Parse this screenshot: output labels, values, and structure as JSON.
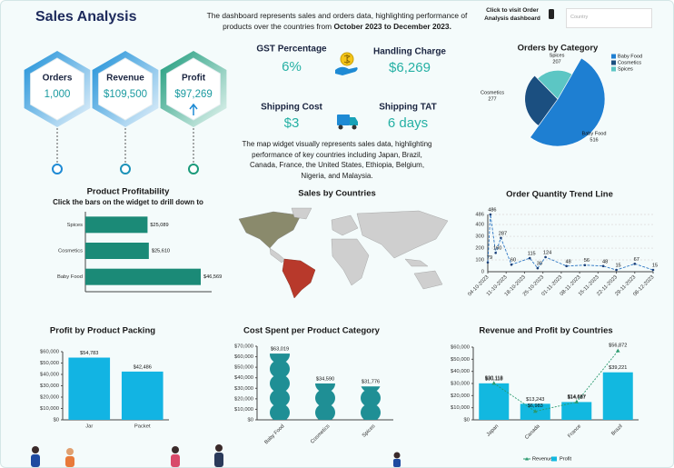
{
  "header": {
    "title": "Sales Analysis",
    "description": "The dashboard represents sales and orders data, highlighting performance of products over the countries from",
    "description_period": "October 2023 to December 2023.",
    "link_text": "Click to visit Order Analysis dashboard",
    "search_placeholder": "Country"
  },
  "metrics": [
    {
      "label": "Orders",
      "value": "1,000"
    },
    {
      "label": "Revenue",
      "value": "$109,500"
    },
    {
      "label": "Profit",
      "value": "$97,269"
    }
  ],
  "kpis": [
    {
      "label": "GST Percentage",
      "value": "6%"
    },
    {
      "label": "Handling Charge",
      "value": "$6,269"
    },
    {
      "label": "Shipping Cost",
      "value": "$3"
    },
    {
      "label": "Shipping TAT",
      "value": "6 days"
    }
  ],
  "map_note": "The map widget visually represents sales data, highlighting performance of key countries including Japan, Brazil, Canada, France, the United States, Ethiopia, Belgium, Nigeria, and Malaysia.",
  "chart_data": [
    {
      "type": "pie",
      "title": "Orders by Category",
      "categories": [
        "Baby Food",
        "Cosmetics",
        "Spices"
      ],
      "values": [
        516,
        277,
        207
      ],
      "colors": [
        "#1e7fd2",
        "#1b4f80",
        "#5cc6c4"
      ],
      "legend": "top-right"
    },
    {
      "type": "bar",
      "orientation": "horizontal",
      "title": "Product Profitability",
      "subtitle": "Click the bars on the widget to drill down to",
      "categories": [
        "Spices",
        "Cosmetics",
        "Baby Food"
      ],
      "values": [
        25089,
        25610,
        46569
      ],
      "value_labels": [
        "$25,089",
        "$25,610",
        "$46,569"
      ],
      "color": "#1b8a77"
    },
    {
      "type": "map",
      "title": "Sales by Countries"
    },
    {
      "type": "line",
      "title": "Order Quantity Trend Line",
      "x": [
        "04-10-2023",
        "05-10-2023",
        "07-10-2023",
        "09-10-2023",
        "13-10-2023",
        "20-10-2023",
        "23-10-2023",
        "26-10-2023",
        "03-11-2023",
        "10-11-2023",
        "17-11-2023",
        "22-11-2023",
        "29-11-2023",
        "06-12-2023"
      ],
      "values": [
        79,
        486,
        160,
        287,
        60,
        115,
        30,
        124,
        48,
        56,
        48,
        15,
        67,
        15
      ],
      "color": "#2f78c4",
      "xlim": [
        "04-10-2023",
        "06-12-2023"
      ],
      "xticks": [
        "04-10-2023",
        "11-10-2023",
        "18-10-2023",
        "25-10-2023",
        "01-11-2023",
        "08-11-2023",
        "15-11-2023",
        "22-11-2023",
        "29-11-2023",
        "06-12-2023"
      ],
      "ylim": [
        0,
        486
      ],
      "yticks": [
        0,
        100,
        200,
        300,
        400,
        486
      ],
      "grid": true
    },
    {
      "type": "bar",
      "title": "Profit by Product Packing",
      "categories": [
        "Jar",
        "Packet"
      ],
      "values": [
        54783,
        42486
      ],
      "value_labels": [
        "$54,783",
        "$42,486"
      ],
      "color": "#12b4e3",
      "ylim": [
        0,
        60000
      ],
      "yticks": [
        {
          "value": 0,
          "label": "$0"
        },
        {
          "value": 10000,
          "label": "$10,000"
        },
        {
          "value": 20000,
          "label": "$20,000"
        },
        {
          "value": 30000,
          "label": "$30,000"
        },
        {
          "value": 40000,
          "label": "$40,000"
        },
        {
          "value": 50000,
          "label": "$50,000"
        },
        {
          "value": 60000,
          "label": "$60,000"
        }
      ]
    },
    {
      "type": "pictograph",
      "title": "Cost Spent per Product Category",
      "categories": [
        "Baby Food",
        "Cosmetics",
        "Spices"
      ],
      "values": [
        63019,
        34590,
        31776
      ],
      "value_labels": [
        "$63,019",
        "$34,590",
        "$31,776"
      ],
      "color": "#1f8f95",
      "ylim": [
        0,
        70000
      ],
      "yticks": [
        {
          "value": 0,
          "label": "$0"
        },
        {
          "value": 10000,
          "label": "$10,000"
        },
        {
          "value": 20000,
          "label": "$20,000"
        },
        {
          "value": 30000,
          "label": "$30,000"
        },
        {
          "value": 40000,
          "label": "$40,000"
        },
        {
          "value": 50000,
          "label": "$50,000"
        },
        {
          "value": 60000,
          "label": "$60,000"
        },
        {
          "value": 70000,
          "label": "$70,000"
        }
      ]
    },
    {
      "type": "combo",
      "title": "Revenue and Profit by Countries",
      "categories": [
        "Japan",
        "Canada",
        "France",
        "Brazil"
      ],
      "series": [
        {
          "name": "Revenue",
          "style": "line",
          "color": "#2a9a6e",
          "values": [
            30118,
            6983,
            14687,
            56872
          ],
          "value_labels": [
            "$30,118",
            "$6,983",
            "$14,687",
            "$56,872"
          ]
        },
        {
          "name": "Profit",
          "style": "bar",
          "color": "#12b8e0",
          "values": [
            30118,
            13243,
            14687,
            39221
          ],
          "value_labels": [
            "$30,118",
            "$13,243",
            "$14,687",
            "$39,221"
          ]
        }
      ],
      "ylim": [
        0,
        60000
      ],
      "yticks": [
        {
          "value": 0,
          "label": "$0"
        },
        {
          "value": 10000,
          "label": "$10,000"
        },
        {
          "value": 20000,
          "label": "$20,000"
        },
        {
          "value": 30000,
          "label": "$30,000"
        },
        {
          "value": 40000,
          "label": "$40,000"
        },
        {
          "value": 50000,
          "label": "$50,000"
        },
        {
          "value": 60000,
          "label": "$60,000"
        }
      ],
      "legend": "bottom"
    }
  ]
}
